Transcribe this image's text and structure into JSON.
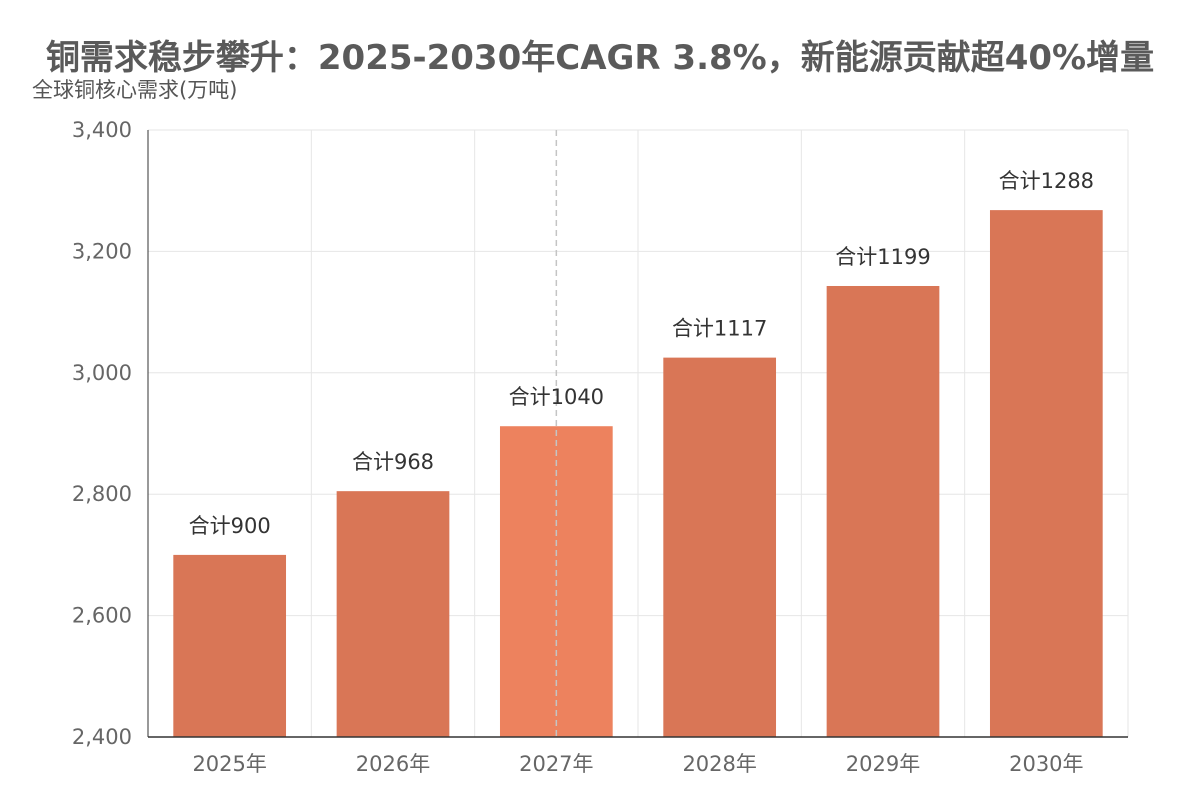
{
  "chart_data": {
    "type": "bar",
    "title": "铜需求稳步攀升：2025-2030年CAGR 3.8%，新能源贡献超40%增量",
    "ylabel": "全球铜核心需求(万吨)",
    "xlabel": "",
    "categories": [
      "2025年",
      "2026年",
      "2027年",
      "2028年",
      "2029年",
      "2030年"
    ],
    "values": [
      2700,
      2805,
      2912,
      3025,
      3143,
      3268
    ],
    "data_labels": [
      "合计900",
      "合计968",
      "合计1040",
      "合计1117",
      "合计1199",
      "合计1288"
    ],
    "ylim": [
      2400,
      3400
    ],
    "yticks": [
      2400,
      2600,
      2800,
      3000,
      3200,
      3400
    ],
    "ytick_labels": [
      "2,400",
      "2,600",
      "2,800",
      "3,000",
      "3,200",
      "3,400"
    ],
    "highlight_index": 2,
    "grid": true,
    "legend": "none",
    "colors": {
      "bar": "#d97656",
      "bar_highlight": "#ed825e",
      "grid": "#e6e6e6",
      "axis": "#333333",
      "marker_line": "#c4c4c4"
    }
  }
}
